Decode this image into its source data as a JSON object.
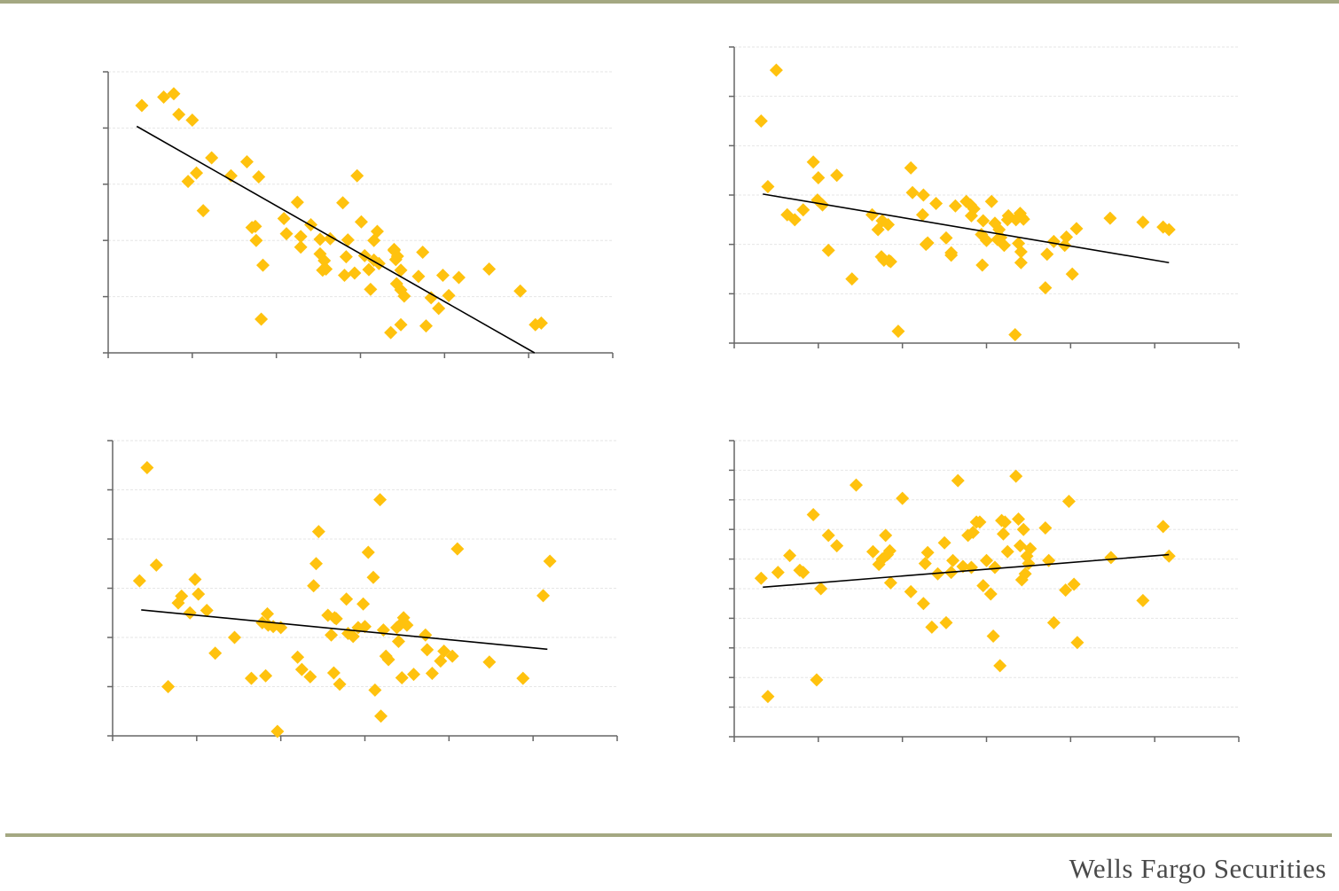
{
  "footer": {
    "brand": "Wells Fargo Securities"
  },
  "colors": {
    "marker": "#FFC20E",
    "trend": "#000000",
    "axis": "#666666",
    "grid": "#e6e6e6",
    "rule": "#a4a882"
  },
  "chart_data": [
    {
      "type": "scatter",
      "title": "",
      "xlabel": "",
      "ylabel": "",
      "xlim": [
        0,
        6
      ],
      "ylim": [
        0,
        5
      ],
      "xticks": [
        0,
        1,
        2,
        3,
        4,
        5,
        6
      ],
      "yticks": [
        0,
        1,
        2,
        3,
        4,
        5
      ],
      "trendline": {
        "x": [
          0.34,
          5.07
        ],
        "y": [
          4.03,
          0.0
        ]
      },
      "points": {
        "x": [
          0.4,
          0.66,
          0.78,
          0.84,
          1.0,
          0.95,
          1.05,
          1.13,
          1.23,
          1.46,
          1.65,
          1.79,
          1.71,
          1.75,
          1.76,
          1.84,
          1.82,
          2.09,
          2.12,
          2.25,
          2.29,
          2.29,
          2.41,
          2.52,
          2.57,
          2.55,
          2.59,
          2.52,
          2.64,
          2.79,
          2.81,
          2.83,
          2.85,
          2.93,
          2.96,
          3.01,
          3.05,
          3.1,
          3.12,
          3.16,
          3.16,
          3.2,
          3.22,
          3.4,
          3.42,
          3.43,
          3.44,
          3.48,
          3.48,
          3.36,
          3.48,
          3.4,
          3.52,
          3.69,
          3.84,
          3.78,
          3.74,
          3.93,
          3.98,
          4.05,
          4.17,
          4.53,
          4.9,
          5.15,
          5.08
        ],
        "y": [
          4.4,
          4.55,
          4.61,
          4.24,
          4.14,
          3.05,
          3.2,
          2.53,
          3.47,
          3.15,
          3.4,
          3.13,
          2.23,
          2.25,
          2.0,
          1.56,
          0.6,
          2.39,
          2.12,
          2.68,
          2.07,
          1.88,
          2.28,
          1.76,
          1.64,
          1.47,
          1.49,
          2.02,
          2.03,
          2.67,
          1.38,
          1.71,
          2.01,
          1.42,
          3.15,
          2.33,
          1.73,
          1.48,
          1.13,
          1.65,
          2.0,
          2.16,
          1.59,
          1.84,
          1.66,
          1.23,
          1.72,
          1.12,
          1.47,
          0.36,
          0.5,
          1.82,
          1.01,
          1.36,
          0.98,
          0.48,
          1.79,
          0.79,
          1.38,
          1.02,
          1.34,
          1.49,
          1.1,
          0.53,
          0.5
        ]
      }
    },
    {
      "type": "scatter",
      "title": "",
      "xlabel": "",
      "ylabel": "",
      "xlim": [
        0,
        6
      ],
      "ylim": [
        0,
        6
      ],
      "xticks": [
        0,
        1,
        2,
        3,
        4,
        5,
        6
      ],
      "yticks": [
        0,
        1,
        2,
        3,
        4,
        5,
        6
      ],
      "trendline": {
        "x": [
          0.34,
          5.17
        ],
        "y": [
          3.02,
          1.63
        ]
      },
      "points": {
        "x": [
          0.32,
          0.5,
          0.4,
          0.63,
          0.72,
          0.82,
          0.94,
          1.0,
          0.99,
          1.05,
          1.12,
          1.22,
          1.4,
          1.64,
          1.71,
          1.76,
          1.78,
          1.86,
          1.83,
          1.75,
          1.84,
          1.95,
          2.1,
          2.25,
          2.12,
          2.24,
          2.3,
          2.28,
          2.4,
          2.52,
          2.58,
          2.58,
          2.63,
          2.76,
          2.82,
          2.85,
          2.96,
          3.0,
          3.06,
          3.1,
          3.15,
          3.17,
          3.21,
          3.25,
          3.13,
          3.26,
          2.81,
          2.94,
          2.95,
          3.34,
          3.4,
          3.42,
          3.35,
          3.41,
          3.44,
          3.38,
          3.41,
          3.7,
          3.8,
          3.72,
          3.93,
          3.95,
          4.07,
          4.02,
          4.47,
          4.86,
          5.1,
          5.17
        ],
        "y": [
          4.5,
          5.53,
          3.17,
          2.6,
          2.5,
          2.7,
          3.67,
          3.35,
          2.9,
          2.8,
          1.88,
          3.4,
          1.3,
          2.6,
          2.3,
          2.48,
          1.68,
          1.65,
          2.4,
          1.75,
          1.67,
          0.24,
          3.55,
          3.0,
          3.05,
          2.6,
          2.03,
          2.0,
          2.83,
          2.13,
          1.78,
          1.83,
          2.78,
          2.87,
          2.58,
          2.72,
          2.48,
          2.08,
          2.87,
          2.43,
          2.3,
          2.14,
          1.98,
          2.5,
          2.1,
          2.58,
          2.8,
          2.2,
          1.58,
          0.17,
          2.63,
          2.55,
          2.5,
          1.63,
          2.51,
          2.02,
          1.85,
          1.12,
          2.06,
          1.8,
          1.98,
          2.15,
          2.32,
          1.4,
          2.53,
          2.45,
          2.35,
          2.3
        ]
      }
    },
    {
      "type": "scatter",
      "title": "",
      "xlabel": "",
      "ylabel": "",
      "xlim": [
        0,
        6
      ],
      "ylim": [
        0,
        6
      ],
      "xticks": [
        0,
        1,
        2,
        3,
        4,
        5,
        6
      ],
      "yticks": [
        0,
        1,
        2,
        3,
        4,
        5,
        6
      ],
      "trendline": {
        "x": [
          0.34,
          5.17
        ],
        "y": [
          2.56,
          1.76
        ]
      },
      "points": {
        "x": [
          0.32,
          0.41,
          0.52,
          0.66,
          0.78,
          0.82,
          0.92,
          0.98,
          1.02,
          1.12,
          1.22,
          1.45,
          1.65,
          1.78,
          1.85,
          1.84,
          1.82,
          1.91,
          1.96,
          2.0,
          2.2,
          2.25,
          2.35,
          2.39,
          2.42,
          2.45,
          2.56,
          2.63,
          2.66,
          2.6,
          2.64,
          2.7,
          2.78,
          2.8,
          2.86,
          2.92,
          2.98,
          3.0,
          3.04,
          3.1,
          3.12,
          3.18,
          3.19,
          3.22,
          3.25,
          3.28,
          3.38,
          3.4,
          3.42,
          3.44,
          3.46,
          3.5,
          3.58,
          3.72,
          3.74,
          3.8,
          3.9,
          3.94,
          4.04,
          4.1,
          4.48,
          4.88,
          5.12,
          5.2
        ],
        "y": [
          3.15,
          5.45,
          3.47,
          1.0,
          2.7,
          2.84,
          2.5,
          3.18,
          2.88,
          2.55,
          1.68,
          2.0,
          1.17,
          2.3,
          2.25,
          2.48,
          1.22,
          2.22,
          0.09,
          2.2,
          1.6,
          1.35,
          1.2,
          3.05,
          3.5,
          4.15,
          2.45,
          1.28,
          2.38,
          2.05,
          2.4,
          1.05,
          2.78,
          2.08,
          2.02,
          2.2,
          2.68,
          2.22,
          3.73,
          3.22,
          0.93,
          4.8,
          0.4,
          2.15,
          1.62,
          1.55,
          2.2,
          1.92,
          2.26,
          1.18,
          2.4,
          2.25,
          1.25,
          2.05,
          1.75,
          1.27,
          1.52,
          1.72,
          1.62,
          3.8,
          1.5,
          1.17,
          2.85,
          3.55
        ]
      }
    },
    {
      "type": "scatter",
      "title": "",
      "xlabel": "",
      "ylabel": "",
      "xlim": [
        0,
        6
      ],
      "ylim": [
        0,
        10
      ],
      "xticks": [
        0,
        1,
        2,
        3,
        4,
        5,
        6
      ],
      "yticks": [
        0,
        1,
        2,
        3,
        4,
        5,
        6,
        7,
        8,
        9,
        10
      ],
      "trendline": {
        "x": [
          0.34,
          5.17
        ],
        "y": [
          5.05,
          6.15
        ]
      },
      "points": {
        "x": [
          0.32,
          0.4,
          0.52,
          0.66,
          0.78,
          0.82,
          0.94,
          0.98,
          1.03,
          1.12,
          1.22,
          1.45,
          1.65,
          1.72,
          1.76,
          1.8,
          1.86,
          1.85,
          1.82,
          2.0,
          2.1,
          2.25,
          2.27,
          2.3,
          2.35,
          2.42,
          2.5,
          2.52,
          2.58,
          2.6,
          2.66,
          2.72,
          2.78,
          2.82,
          2.84,
          2.88,
          2.92,
          2.96,
          3.0,
          3.05,
          3.08,
          3.1,
          3.16,
          3.18,
          3.2,
          3.22,
          3.25,
          3.35,
          3.38,
          3.4,
          3.42,
          3.44,
          3.46,
          3.48,
          3.5,
          3.52,
          3.7,
          3.74,
          3.8,
          3.94,
          3.98,
          4.04,
          4.08,
          4.48,
          4.86,
          5.1,
          5.17
        ],
        "y": [
          5.35,
          1.36,
          5.55,
          6.12,
          5.62,
          5.55,
          7.5,
          1.92,
          5.0,
          6.8,
          6.45,
          8.5,
          6.25,
          5.82,
          6.0,
          6.8,
          5.2,
          6.28,
          6.15,
          8.05,
          4.9,
          4.5,
          5.85,
          6.22,
          3.7,
          5.5,
          6.55,
          3.85,
          5.55,
          5.95,
          8.65,
          5.75,
          6.8,
          5.72,
          6.9,
          7.25,
          7.25,
          5.1,
          5.95,
          4.82,
          3.4,
          5.72,
          2.4,
          7.3,
          6.85,
          7.25,
          6.25,
          8.8,
          7.35,
          6.45,
          5.3,
          7.0,
          5.5,
          6.1,
          5.85,
          6.35,
          7.05,
          5.95,
          3.85,
          4.95,
          7.95,
          5.15,
          3.18,
          6.05,
          4.6,
          7.1,
          6.1
        ]
      }
    }
  ]
}
